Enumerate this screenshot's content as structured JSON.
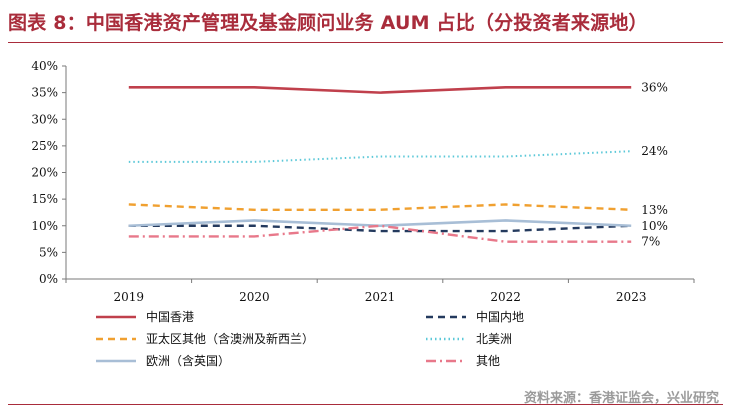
{
  "title": "图表 8：中国香港资产管理及基金顾问业务 AUM 占比（分投资者来源地）",
  "source": "资料来源：香港证监会，兴业研究",
  "chart_data": {
    "type": "line",
    "categories": [
      "2019",
      "2020",
      "2021",
      "2022",
      "2023"
    ],
    "ylim": [
      0,
      40
    ],
    "y_ticks": [
      "0%",
      "5%",
      "10%",
      "15%",
      "20%",
      "25%",
      "30%",
      "35%",
      "40%"
    ],
    "grid": false,
    "legend_position": "bottom",
    "series": [
      {
        "name": "中国香港",
        "values": [
          36,
          36,
          35,
          36,
          36
        ],
        "color": "#c0404c",
        "style": "solid",
        "end_label": "36%"
      },
      {
        "name": "中国内地",
        "values": [
          10,
          10,
          9,
          9,
          10
        ],
        "color": "#243a5e",
        "style": "dash",
        "end_label": ""
      },
      {
        "name": "亚太区其他（含澳洲及新西兰）",
        "values": [
          14,
          13,
          13,
          14,
          13
        ],
        "color": "#f0a030",
        "style": "dash",
        "end_label": "13%"
      },
      {
        "name": "北美洲",
        "values": [
          22,
          22,
          23,
          23,
          24
        ],
        "color": "#5bc8d8",
        "style": "dot",
        "end_label": "24%"
      },
      {
        "name": "欧洲（含英国）",
        "values": [
          10,
          11,
          10,
          11,
          10
        ],
        "color": "#a8bed6",
        "style": "solid",
        "end_label": "10%"
      },
      {
        "name": "其他",
        "values": [
          8,
          8,
          10,
          7,
          7
        ],
        "color": "#e8788a",
        "style": "dashdot",
        "end_label": "7%"
      }
    ]
  }
}
